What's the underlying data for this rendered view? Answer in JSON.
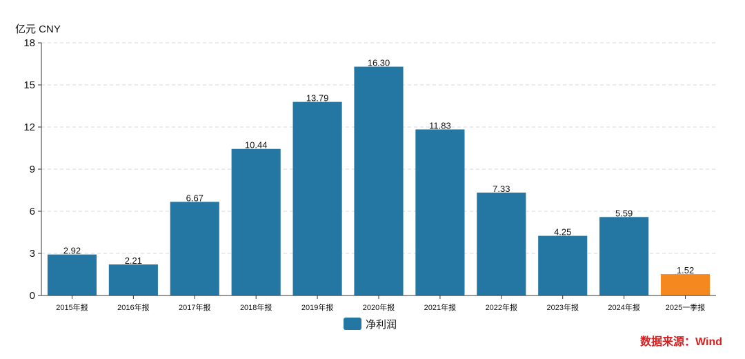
{
  "chart_data": {
    "type": "bar",
    "unit_label": "亿元  CNY",
    "categories": [
      "2015年报",
      "2016年报",
      "2017年报",
      "2018年报",
      "2019年报",
      "2020年报",
      "2021年报",
      "2022年报",
      "2023年报",
      "2024年报",
      "2025一季报"
    ],
    "series": [
      {
        "name": "净利润",
        "values": [
          2.92,
          2.21,
          6.67,
          10.44,
          13.79,
          16.3,
          11.83,
          7.33,
          4.25,
          5.59,
          1.52
        ],
        "value_labels": [
          "2.92",
          "2.21",
          "6.67",
          "10.44",
          "13.79",
          "16.30",
          "11.83",
          "7.33",
          "4.25",
          "5.59",
          "1.52"
        ]
      }
    ],
    "ylim": [
      0,
      18
    ],
    "yticks": [
      0,
      3,
      6,
      9,
      12,
      15,
      18
    ],
    "grid": true,
    "legend_position": "bottom-center",
    "highlight_index": 10
  },
  "colors": {
    "bar": "#2477a3",
    "highlight_bar": "#f5891f",
    "source": "#d42020"
  },
  "source_text": "数据来源：Wind"
}
